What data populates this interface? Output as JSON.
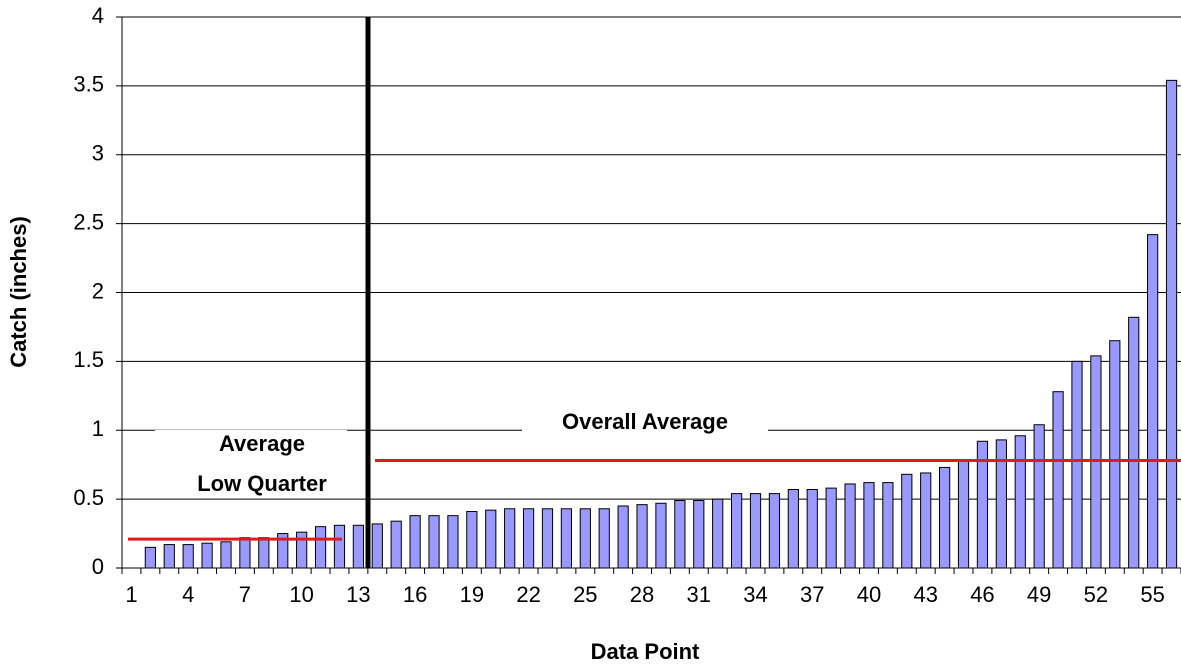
{
  "chart_data": {
    "type": "bar",
    "x_label": "Data Point",
    "y_label": "Catch (inches)",
    "categories": [
      "1",
      null,
      null,
      "4",
      null,
      null,
      "7",
      null,
      null,
      "10",
      null,
      null,
      "13",
      null,
      null,
      "16",
      null,
      null,
      "19",
      null,
      null,
      "22",
      null,
      null,
      "25",
      null,
      null,
      "28",
      null,
      null,
      "31",
      null,
      null,
      "34",
      null,
      null,
      "37",
      null,
      null,
      "40",
      null,
      null,
      "43",
      null,
      null,
      "46",
      null,
      null,
      "49",
      null,
      null,
      "52",
      null,
      null,
      "55",
      null
    ],
    "values": [
      0,
      0.15,
      0.17,
      0.17,
      0.18,
      0.19,
      0.22,
      0.22,
      0.25,
      0.26,
      0.3,
      0.31,
      0.31,
      0.32,
      0.34,
      0.38,
      0.38,
      0.38,
      0.41,
      0.42,
      0.43,
      0.43,
      0.43,
      0.43,
      0.43,
      0.43,
      0.45,
      0.46,
      0.47,
      0.49,
      0.49,
      0.5,
      0.54,
      0.54,
      0.54,
      0.57,
      0.57,
      0.58,
      0.61,
      0.62,
      0.62,
      0.68,
      0.69,
      0.73,
      0.78,
      0.92,
      0.93,
      0.96,
      1.04,
      1.28,
      1.5,
      1.54,
      1.65,
      1.82,
      2.42,
      3.54
    ],
    "color": "#9999ff",
    "ylim": [
      0,
      4
    ],
    "yticks": [
      0,
      0.5,
      1,
      1.5,
      2,
      2.5,
      3,
      3.5,
      4
    ],
    "grid": true,
    "reference_lines": [
      {
        "label_lines": [
          "Average",
          "Low Quarter"
        ],
        "value": 0.21,
        "color": "#e31a1c"
      },
      {
        "label_lines": [
          "Overall Average"
        ],
        "value": 0.78,
        "color": "#e31a1c"
      }
    ]
  }
}
